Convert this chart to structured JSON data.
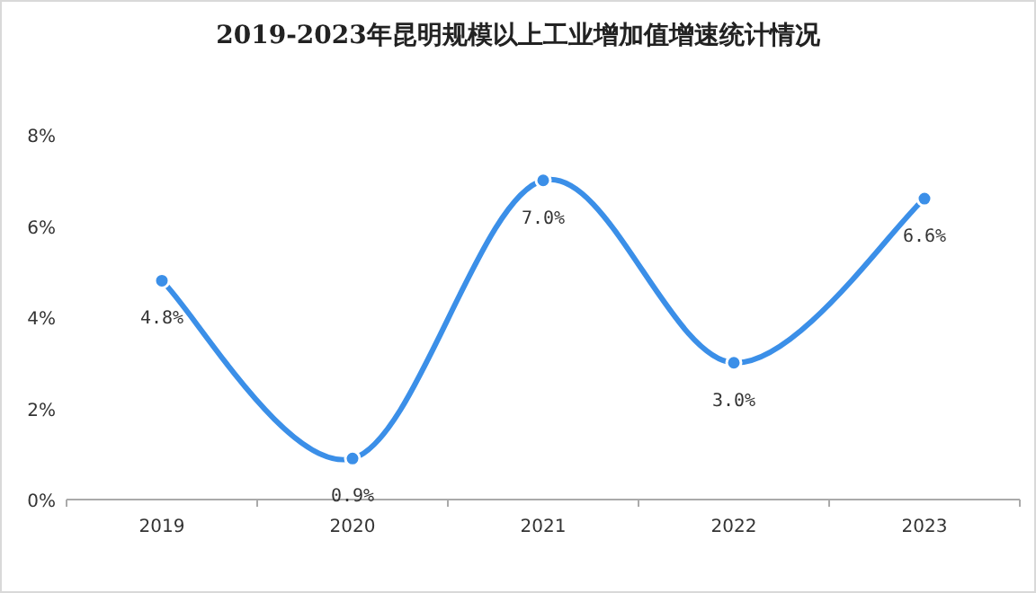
{
  "chart_data": {
    "type": "line",
    "title": "2019-2023年昆明规模以上工业增加值增速统计情况",
    "categories": [
      "2019",
      "2020",
      "2021",
      "2022",
      "2023"
    ],
    "series": [
      {
        "color": "#3b8fe8",
        "values": [
          4.8,
          0.9,
          7.0,
          3.0,
          6.6
        ],
        "value_labels": [
          "4.8%",
          "0.9%",
          "7.0%",
          "3.0%",
          "6.6%"
        ]
      }
    ],
    "ylim": [
      0,
      8
    ],
    "yticks": [
      {
        "value": 0,
        "label": "0%"
      },
      {
        "value": 2,
        "label": "2%"
      },
      {
        "value": 4,
        "label": "4%"
      },
      {
        "value": 6,
        "label": "6%"
      },
      {
        "value": 8,
        "label": "8%"
      }
    ],
    "marker": "circle",
    "grid": false
  }
}
